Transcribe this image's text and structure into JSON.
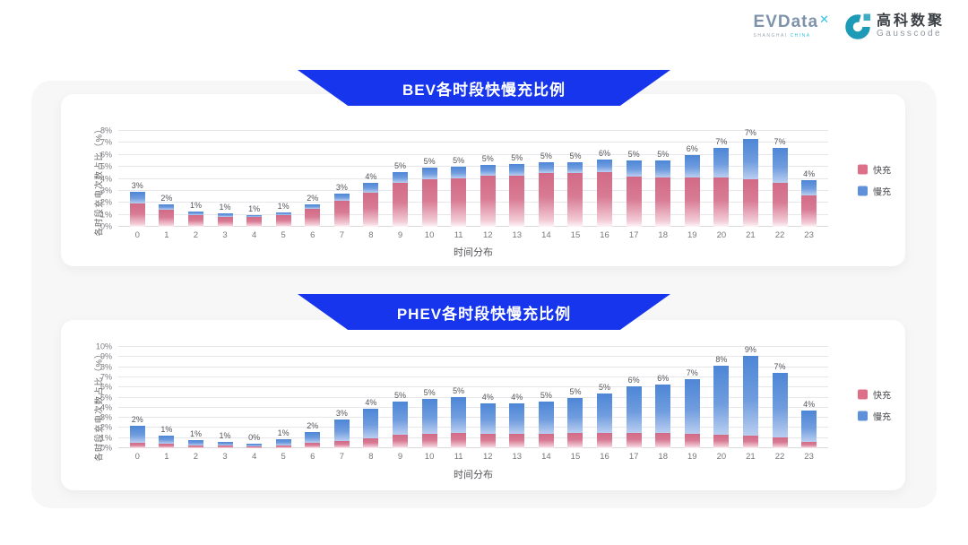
{
  "header": {
    "evdata": {
      "text": "EVData",
      "mark": "✕",
      "sub1": "SHANGHAI",
      "sub2": "CHINA"
    },
    "gausscode": {
      "cn": "高科数聚",
      "en": "Gausscode"
    }
  },
  "colors": {
    "banner_blue": "#1635ec",
    "fast_pink": "#dd7088",
    "slow_blue": "#5f90da",
    "panel_gray": "#f7f7f8",
    "logo_teal": "#1d9ab6"
  },
  "chart_data": [
    {
      "type": "bar",
      "stacked": true,
      "title": "BEV各时段快慢充比例",
      "xlabel": "时间分布",
      "ylabel": "各时段充电次数占比（%）",
      "ylim": [
        0,
        8
      ],
      "y_tick_step": 1,
      "grid": true,
      "legend_position": "right",
      "categories": [
        "0",
        "1",
        "2",
        "3",
        "4",
        "5",
        "6",
        "7",
        "8",
        "9",
        "10",
        "11",
        "12",
        "13",
        "14",
        "15",
        "16",
        "17",
        "18",
        "19",
        "20",
        "21",
        "22",
        "23"
      ],
      "series": [
        {
          "name": "快充",
          "color": "#dd7088",
          "values": [
            1.95,
            1.45,
            0.95,
            0.85,
            0.85,
            1.0,
            1.5,
            2.2,
            2.85,
            3.7,
            4.0,
            4.05,
            4.25,
            4.3,
            4.5,
            4.45,
            4.55,
            4.2,
            4.1,
            4.1,
            4.15,
            4.0,
            3.65,
            2.65
          ]
        },
        {
          "name": "慢充",
          "color": "#5f90da",
          "values": [
            0.95,
            0.4,
            0.35,
            0.25,
            0.15,
            0.2,
            0.4,
            0.55,
            0.8,
            0.85,
            0.9,
            0.95,
            0.9,
            0.9,
            0.9,
            0.95,
            1.05,
            1.3,
            1.4,
            1.85,
            2.45,
            3.3,
            2.9,
            1.25
          ]
        }
      ],
      "total_labels": [
        "3%",
        "2%",
        "1%",
        "1%",
        "1%",
        "1%",
        "2%",
        "3%",
        "4%",
        "5%",
        "5%",
        "5%",
        "5%",
        "5%",
        "5%",
        "5%",
        "6%",
        "5%",
        "5%",
        "6%",
        "7%",
        "7%",
        "7%",
        "4%"
      ]
    },
    {
      "type": "bar",
      "stacked": true,
      "title": "PHEV各时段快慢充比例",
      "xlabel": "时间分布",
      "ylabel": "各时段充电次数占比（%）",
      "ylim": [
        0,
        10
      ],
      "y_tick_step": 1,
      "grid": true,
      "legend_position": "right",
      "categories": [
        "0",
        "1",
        "2",
        "3",
        "4",
        "5",
        "6",
        "7",
        "8",
        "9",
        "10",
        "11",
        "12",
        "13",
        "14",
        "15",
        "16",
        "17",
        "18",
        "19",
        "20",
        "21",
        "22",
        "23"
      ],
      "series": [
        {
          "name": "快充",
          "color": "#dd7088",
          "values": [
            0.5,
            0.4,
            0.3,
            0.25,
            0.2,
            0.3,
            0.5,
            0.75,
            1.0,
            1.35,
            1.45,
            1.55,
            1.45,
            1.4,
            1.4,
            1.5,
            1.5,
            1.5,
            1.5,
            1.45,
            1.3,
            1.2,
            1.05,
            0.6
          ]
        },
        {
          "name": "慢充",
          "color": "#5f90da",
          "values": [
            1.75,
            0.8,
            0.5,
            0.35,
            0.25,
            0.55,
            1.1,
            2.05,
            2.9,
            3.25,
            3.45,
            3.5,
            3.0,
            3.05,
            3.2,
            3.45,
            3.9,
            4.6,
            4.75,
            5.35,
            6.8,
            7.9,
            6.35,
            3.15
          ]
        }
      ],
      "total_labels": [
        "2%",
        "1%",
        "1%",
        "1%",
        "0%",
        "1%",
        "2%",
        "3%",
        "4%",
        "5%",
        "5%",
        "5%",
        "4%",
        "4%",
        "5%",
        "5%",
        "5%",
        "6%",
        "6%",
        "7%",
        "8%",
        "9%",
        "7%",
        "4%"
      ]
    }
  ]
}
